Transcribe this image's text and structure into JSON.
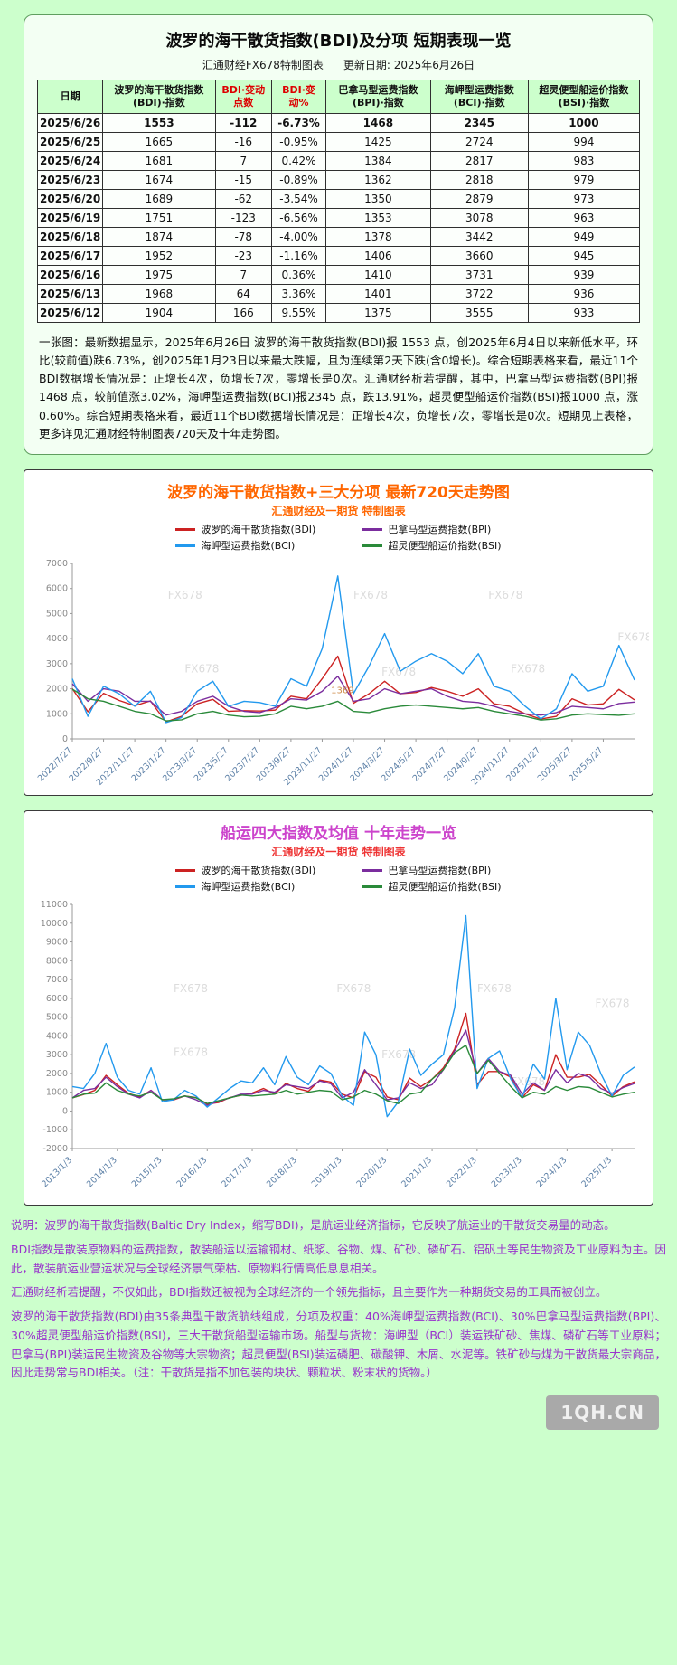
{
  "colors": {
    "page_bg": "#ccffcc",
    "bdi_line": "#cc2222",
    "bpi_line": "#7b2d9e",
    "bci_line": "#2299ee",
    "bsi_line": "#2a8a3a",
    "change_header_red": "#dd0000",
    "chart1_title": "#ff6600",
    "chart2_title": "#cc44cc",
    "footer_text": "#9933cc"
  },
  "table_section": {
    "title": "波罗的海干散货指数(BDI)及分项 短期表现一览",
    "source": "汇通财经FX678特制图表",
    "update_date": "更新日期: 2025年6月26日",
    "columns": [
      {
        "label": "日期"
      },
      {
        "label": "波罗的海干散货指数(BDI)·指数"
      },
      {
        "label": "BDI·变动点数",
        "color": "#dd0000"
      },
      {
        "label": "BDI·变动%",
        "color": "#dd0000"
      },
      {
        "label": "巴拿马型运费指数(BPI)·指数"
      },
      {
        "label": "海岬型运费指数(BCI)·指数"
      },
      {
        "label": "超灵便型船运价指数(BSI)·指数"
      }
    ],
    "rows": [
      [
        "2025/6/26",
        "1553",
        "-112",
        "-6.73%",
        "1468",
        "2345",
        "1000"
      ],
      [
        "2025/6/25",
        "1665",
        "-16",
        "-0.95%",
        "1425",
        "2724",
        "994"
      ],
      [
        "2025/6/24",
        "1681",
        "7",
        "0.42%",
        "1384",
        "2817",
        "983"
      ],
      [
        "2025/6/23",
        "1674",
        "-15",
        "-0.89%",
        "1362",
        "2818",
        "979"
      ],
      [
        "2025/6/20",
        "1689",
        "-62",
        "-3.54%",
        "1350",
        "2879",
        "973"
      ],
      [
        "2025/6/19",
        "1751",
        "-123",
        "-6.56%",
        "1353",
        "3078",
        "963"
      ],
      [
        "2025/6/18",
        "1874",
        "-78",
        "-4.00%",
        "1378",
        "3442",
        "949"
      ],
      [
        "2025/6/17",
        "1952",
        "-23",
        "-1.16%",
        "1406",
        "3660",
        "945"
      ],
      [
        "2025/6/16",
        "1975",
        "7",
        "0.36%",
        "1410",
        "3731",
        "939"
      ],
      [
        "2025/6/13",
        "1968",
        "64",
        "3.36%",
        "1401",
        "3722",
        "936"
      ],
      [
        "2025/6/12",
        "1904",
        "166",
        "9.55%",
        "1375",
        "3555",
        "933"
      ]
    ],
    "note": "一张图：最新数据显示，2025年6月26日 波罗的海干散货指数(BDI)报 1553 点，创2025年6月4日以来新低水平，环比(较前值)跌6.73%，创2025年1月23日以来最大跌幅，且为连续第2天下跌(含0增长)。综合短期表格来看，最近11个BDI数据增长情况是：正增长4次，负增长7次，零增长是0次。汇通财经析若提醒，其中，巴拿马型运费指数(BPI)报 1468 点，较前值涨3.02%，海岬型运费指数(BCI)报2345 点，跌13.91%，超灵便型船运价指数(BSI)报1000 点，涨0.60%。综合短期表格来看，最近11个BDI数据增长情况是：正增长4次，负增长7次，零增长是0次。短期见上表格，更多详见汇通财经特制图表720天及十年走势图。"
  },
  "chart_data": [
    {
      "type": "line",
      "title": "波罗的海干散货指数+三大分项 最新720天走势图",
      "subtitle": "汇通财经及一期货 特制图表",
      "ylim": [
        0,
        7000
      ],
      "ytick_step": 1000,
      "grid": false,
      "legend_position": "top",
      "watermark_text": "FX678",
      "watermarks": [
        [
          0.17,
          0.2
        ],
        [
          0.5,
          0.2
        ],
        [
          0.74,
          0.2
        ],
        [
          0.2,
          0.62
        ],
        [
          0.55,
          0.64
        ],
        [
          0.97,
          0.44
        ],
        [
          0.78,
          0.62
        ]
      ],
      "annotations": [
        {
          "text": "1369",
          "x": 0.46,
          "y": 0.74,
          "color": "#cc8844"
        }
      ],
      "categories": [
        "2022/7/27",
        "2022/8/27",
        "2022/9/27",
        "2022/10/27",
        "2022/11/27",
        "2022/12/27",
        "2023/1/27",
        "2023/2/27",
        "2023/3/27",
        "2023/4/27",
        "2023/5/27",
        "2023/6/27",
        "2023/7/27",
        "2023/8/27",
        "2023/9/27",
        "2023/10/27",
        "2023/11/27",
        "2023/12/27",
        "2024/1/27",
        "2024/2/27",
        "2024/3/27",
        "2024/4/27",
        "2024/5/27",
        "2024/6/27",
        "2024/7/27",
        "2024/8/27",
        "2024/9/27",
        "2024/10/27",
        "2024/11/27",
        "2024/12/27",
        "2025/1/27",
        "2025/2/27",
        "2025/3/27",
        "2025/4/27",
        "2025/5/27",
        "2025/6/16",
        "2025/6/26"
      ],
      "xtick_indices": [
        0,
        2,
        4,
        6,
        8,
        10,
        12,
        14,
        16,
        18,
        20,
        22,
        24,
        26,
        28,
        30,
        32,
        34
      ],
      "series": [
        {
          "name": "波罗的海干散货指数(BDI)",
          "short": "bdi",
          "color": "#cc2222",
          "values": [
            2006,
            1082,
            1816,
            1534,
            1324,
            1515,
            677,
            900,
            1400,
            1576,
            1100,
            1126,
            1110,
            1150,
            1701,
            1600,
            2400,
            3300,
            1418,
            1800,
            2300,
            1800,
            1850,
            2050,
            1900,
            1700,
            2000,
            1400,
            1300,
            1000,
            790,
            900,
            1600,
            1350,
            1400,
            1975,
            1553
          ]
        },
        {
          "name": "巴拿马型运费指数(BPI)",
          "short": "bpi",
          "color": "#7b2d9e",
          "values": [
            2200,
            1500,
            2000,
            1900,
            1500,
            1500,
            950,
            1100,
            1500,
            1700,
            1300,
            1100,
            1050,
            1250,
            1600,
            1550,
            1900,
            2500,
            1500,
            1600,
            2000,
            1800,
            1900,
            2000,
            1700,
            1500,
            1450,
            1300,
            1100,
            1000,
            950,
            1050,
            1300,
            1250,
            1200,
            1410,
            1468
          ]
        },
        {
          "name": "海岬型运费指数(BCI)",
          "short": "bci",
          "color": "#2299ee",
          "values": [
            2400,
            900,
            2100,
            1800,
            1300,
            1900,
            650,
            850,
            1900,
            2300,
            1300,
            1500,
            1450,
            1300,
            2400,
            2100,
            3600,
            6500,
            1800,
            2900,
            4200,
            2700,
            3100,
            3400,
            3100,
            2600,
            3400,
            2100,
            1900,
            1300,
            800,
            1200,
            2600,
            1900,
            2100,
            3731,
            2345
          ]
        },
        {
          "name": "超灵便型船运价指数(BSI)",
          "short": "bsi",
          "color": "#2a8a3a",
          "values": [
            1985,
            1600,
            1500,
            1300,
            1100,
            1000,
            720,
            760,
            1000,
            1100,
            950,
            880,
            900,
            1000,
            1300,
            1200,
            1300,
            1500,
            1100,
            1050,
            1200,
            1300,
            1350,
            1300,
            1250,
            1200,
            1250,
            1100,
            1000,
            900,
            750,
            800,
            950,
            1000,
            970,
            939,
            1000
          ]
        }
      ]
    },
    {
      "type": "line",
      "title": "船运四大指数及均值 十年走势一览",
      "subtitle": "汇通财经及一期货 特制图表",
      "ylim": [
        -2000,
        11000
      ],
      "ytick_step": 1000,
      "grid": false,
      "legend_position": "top",
      "watermark_text": "FX678",
      "watermarks": [
        [
          0.18,
          0.36
        ],
        [
          0.47,
          0.36
        ],
        [
          0.72,
          0.36
        ],
        [
          0.18,
          0.62
        ],
        [
          0.55,
          0.63
        ],
        [
          0.93,
          0.42
        ],
        [
          0.78,
          0.74
        ]
      ],
      "annotations": [],
      "categories": [
        "2013/1/3",
        "2013/4/3",
        "2013/7/3",
        "2013/10/3",
        "2014/1/3",
        "2014/4/3",
        "2014/7/3",
        "2014/10/3",
        "2015/1/3",
        "2015/4/3",
        "2015/7/3",
        "2015/10/3",
        "2016/1/3",
        "2016/4/3",
        "2016/7/3",
        "2016/10/3",
        "2017/1/3",
        "2017/4/3",
        "2017/7/3",
        "2017/10/3",
        "2018/1/3",
        "2018/4/3",
        "2018/7/3",
        "2018/10/3",
        "2019/1/3",
        "2019/4/3",
        "2019/7/3",
        "2019/10/3",
        "2020/1/3",
        "2020/4/3",
        "2020/7/3",
        "2020/10/3",
        "2021/1/3",
        "2021/4/3",
        "2021/7/3",
        "2021/10/3",
        "2022/1/3",
        "2022/4/3",
        "2022/7/3",
        "2022/10/3",
        "2023/1/3",
        "2023/4/3",
        "2023/7/3",
        "2023/10/3",
        "2024/1/3",
        "2024/4/3",
        "2024/7/3",
        "2024/10/3",
        "2025/1/3",
        "2025/4/3",
        "2025/6/26"
      ],
      "xtick_indices": [
        0,
        4,
        8,
        12,
        16,
        20,
        24,
        28,
        32,
        36,
        40,
        44,
        48
      ],
      "series": [
        {
          "name": "波罗的海干散货指数(BDI)",
          "short": "bdi",
          "color": "#cc2222",
          "values": [
            700,
            880,
            1100,
            1900,
            1400,
            940,
            750,
            1100,
            600,
            590,
            800,
            720,
            370,
            450,
            720,
            840,
            960,
            1200,
            900,
            1470,
            1200,
            1050,
            1650,
            1540,
            900,
            700,
            2100,
            1800,
            750,
            600,
            1750,
            1300,
            1700,
            2300,
            3300,
            5200,
            1400,
            2100,
            2100,
            1800,
            700,
            1400,
            1100,
            3000,
            1800,
            1800,
            1950,
            1400,
            800,
            1300,
            1553
          ]
        },
        {
          "name": "巴拿马型运费指数(BPI)",
          "short": "bpi",
          "color": "#7b2d9e",
          "values": [
            700,
            1100,
            1200,
            1800,
            1300,
            900,
            700,
            1100,
            600,
            620,
            800,
            600,
            300,
            520,
            700,
            900,
            900,
            1100,
            1000,
            1400,
            1300,
            1200,
            1600,
            1450,
            700,
            1000,
            2200,
            1400,
            600,
            700,
            1500,
            1200,
            1400,
            2200,
            3200,
            4300,
            2000,
            2800,
            2100,
            1900,
            900,
            1500,
            1100,
            2200,
            1500,
            2000,
            1800,
            1200,
            950,
            1250,
            1468
          ]
        },
        {
          "name": "海岬型运费指数(BCI)",
          "short": "bci",
          "color": "#2299ee",
          "values": [
            1300,
            1200,
            2000,
            3600,
            1800,
            1100,
            900,
            2300,
            500,
            600,
            1100,
            800,
            210,
            700,
            1200,
            1600,
            1500,
            2300,
            1400,
            2900,
            1800,
            1400,
            2400,
            2000,
            800,
            300,
            4200,
            3000,
            -300,
            500,
            3300,
            1900,
            2500,
            3000,
            5500,
            10400,
            1200,
            2800,
            3200,
            1700,
            700,
            2500,
            1700,
            6000,
            2200,
            4200,
            3500,
            2000,
            800,
            1900,
            2345
          ]
        },
        {
          "name": "超灵便型船运价指数(BSI)",
          "short": "bsi",
          "color": "#2a8a3a",
          "values": [
            700,
            900,
            950,
            1500,
            1100,
            900,
            800,
            1000,
            600,
            650,
            800,
            700,
            400,
            550,
            700,
            850,
            800,
            850,
            900,
            1100,
            900,
            1000,
            1100,
            1050,
            600,
            750,
            1100,
            900,
            550,
            400,
            900,
            1000,
            1700,
            2200,
            3100,
            3500,
            2000,
            2700,
            2000,
            1300,
            700,
            1000,
            900,
            1300,
            1100,
            1300,
            1250,
            1000,
            750,
            900,
            1000
          ]
        }
      ]
    }
  ],
  "footer": {
    "p1": "说明：波罗的海干散货指数(Baltic Dry Index，缩写BDI)，是航运业经济指标，它反映了航运业的干散货交易量的动态。",
    "p2": "BDI指数是散装原物料的运费指数，散装船运以运输钢材、纸浆、谷物、煤、矿砂、磷矿石、铝矾土等民生物资及工业原料为主。因此，散装航运业营运状况与全球经济景气荣枯、原物料行情高低息息相关。",
    "p3": "汇通财经析若提醒，不仅如此，BDI指数还被视为全球经济的一个领先指标，且主要作为一种期货交易的工具而被创立。",
    "p4": "波罗的海干散货指数(BDI)由35条典型干散货航线组成，分项及权重：40%海岬型运费指数(BCI)、30%巴拿马型运费指数(BPI)、30%超灵便型船运价指数(BSI)，三大干散货船型运输市场。船型与货物：海岬型（BCI）装运铁矿砂、焦煤、磷矿石等工业原料；巴拿马(BPI)装运民生物资及谷物等大宗物资；超灵便型(BSI)装运磷肥、碳酸钾、木屑、水泥等。铁矿砂与煤为干散货最大宗商品，因此走势常与BDI相关。（注：干散货是指不加包装的块状、颗粒状、粉末状的货物。）",
    "watermark": "1QH.CN"
  }
}
